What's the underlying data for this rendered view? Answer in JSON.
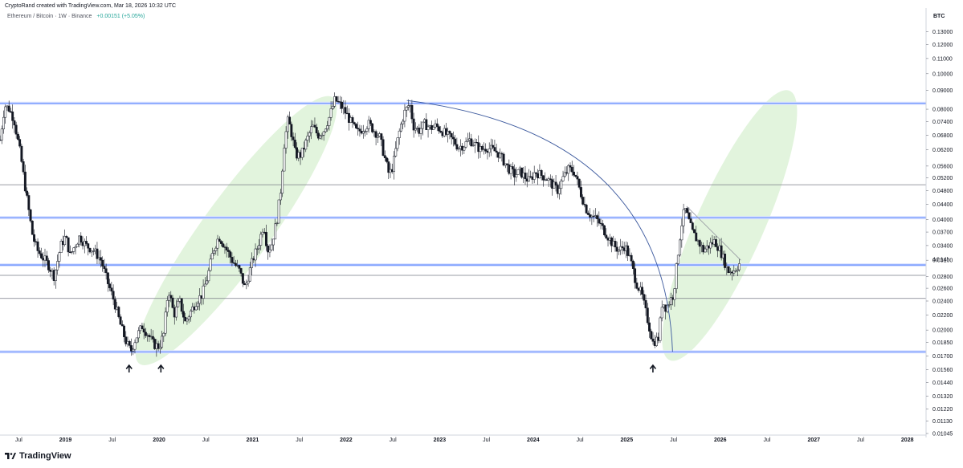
{
  "header": {
    "created_line": "CryptoRand created with TradingView.com, Mar 18, 2026 10:32 UTC",
    "symbol_line": "Ethereum / Bitcoin · 1W · Binance",
    "change": "+0.00151 (+5.05%)"
  },
  "footer": {
    "brand": "TradingView"
  },
  "chart_data": {
    "type": "candlestick",
    "title": "Ethereum / Bitcoin · 1W · Binance",
    "currency_label": "BTC",
    "y_scale": "log",
    "ylim": [
      0.01045,
      0.14
    ],
    "y_ticks": [
      "0.13000",
      "0.12000",
      "0.11000",
      "0.10000",
      "0.09000",
      "0.08000",
      "0.07400",
      "0.06800",
      "0.06200",
      "0.05600",
      "0.05200",
      "0.04800",
      "0.04400",
      "0.04000",
      "0.03700",
      "0.03400",
      "0.03100",
      "0.02800",
      "0.02600",
      "0.02400",
      "0.02200",
      "0.02000",
      "0.01850",
      "0.01700",
      "0.01560",
      "0.01440",
      "0.01320",
      "0.01220",
      "0.01130",
      "0.01045"
    ],
    "y_tick_values": [
      0.13,
      0.12,
      0.11,
      0.1,
      0.09,
      0.08,
      0.074,
      0.068,
      0.062,
      0.056,
      0.052,
      0.048,
      0.044,
      0.04,
      0.037,
      0.034,
      0.031,
      0.028,
      0.026,
      0.024,
      0.022,
      0.02,
      0.0185,
      0.017,
      0.0156,
      0.0144,
      0.0132,
      0.0122,
      0.0113,
      0.01045
    ],
    "x_range": [
      2018.3,
      2028.2
    ],
    "x_ticks": [
      {
        "label": "Jul",
        "t": 2018.5,
        "bold": false
      },
      {
        "label": "2019",
        "t": 2019.0,
        "bold": true
      },
      {
        "label": "Jul",
        "t": 2019.5,
        "bold": false
      },
      {
        "label": "2020",
        "t": 2020.0,
        "bold": true
      },
      {
        "label": "Jul",
        "t": 2020.5,
        "bold": false
      },
      {
        "label": "2021",
        "t": 2021.0,
        "bold": true
      },
      {
        "label": "Jul",
        "t": 2021.5,
        "bold": false
      },
      {
        "label": "2022",
        "t": 2022.0,
        "bold": true
      },
      {
        "label": "Jul",
        "t": 2022.5,
        "bold": false
      },
      {
        "label": "2023",
        "t": 2023.0,
        "bold": true
      },
      {
        "label": "Jul",
        "t": 2023.5,
        "bold": false
      },
      {
        "label": "2024",
        "t": 2024.0,
        "bold": true
      },
      {
        "label": "Jul",
        "t": 2024.5,
        "bold": false
      },
      {
        "label": "2025",
        "t": 2025.0,
        "bold": true
      },
      {
        "label": "Jul",
        "t": 2025.5,
        "bold": false
      },
      {
        "label": "2026",
        "t": 2026.0,
        "bold": true
      },
      {
        "label": "Jul",
        "t": 2026.5,
        "bold": false
      },
      {
        "label": "2027",
        "t": 2027.0,
        "bold": true
      },
      {
        "label": "Jul",
        "t": 2027.5,
        "bold": false
      },
      {
        "label": "2028",
        "t": 2028.0,
        "bold": true
      }
    ],
    "current_price_label": "4d 14h",
    "price_path": [
      {
        "t": 2018.3,
        "v": 0.066
      },
      {
        "t": 2018.35,
        "v": 0.082
      },
      {
        "t": 2018.4,
        "v": 0.08
      },
      {
        "t": 2018.45,
        "v": 0.075
      },
      {
        "t": 2018.52,
        "v": 0.06
      },
      {
        "t": 2018.58,
        "v": 0.047
      },
      {
        "t": 2018.65,
        "v": 0.036
      },
      {
        "t": 2018.7,
        "v": 0.033
      },
      {
        "t": 2018.78,
        "v": 0.031
      },
      {
        "t": 2018.82,
        "v": 0.03
      },
      {
        "t": 2018.88,
        "v": 0.028
      },
      {
        "t": 2018.95,
        "v": 0.034
      },
      {
        "t": 2019.0,
        "v": 0.036
      },
      {
        "t": 2019.05,
        "v": 0.032
      },
      {
        "t": 2019.1,
        "v": 0.034
      },
      {
        "t": 2019.15,
        "v": 0.036
      },
      {
        "t": 2019.22,
        "v": 0.034
      },
      {
        "t": 2019.3,
        "v": 0.033
      },
      {
        "t": 2019.38,
        "v": 0.031
      },
      {
        "t": 2019.45,
        "v": 0.027
      },
      {
        "t": 2019.52,
        "v": 0.024
      },
      {
        "t": 2019.58,
        "v": 0.021
      },
      {
        "t": 2019.65,
        "v": 0.0185
      },
      {
        "t": 2019.7,
        "v": 0.0175
      },
      {
        "t": 2019.75,
        "v": 0.019
      },
      {
        "t": 2019.82,
        "v": 0.0205
      },
      {
        "t": 2019.88,
        "v": 0.0195
      },
      {
        "t": 2019.94,
        "v": 0.0183
      },
      {
        "t": 2020.0,
        "v": 0.018
      },
      {
        "t": 2020.05,
        "v": 0.0195
      },
      {
        "t": 2020.1,
        "v": 0.026
      },
      {
        "t": 2020.16,
        "v": 0.022
      },
      {
        "t": 2020.22,
        "v": 0.024
      },
      {
        "t": 2020.28,
        "v": 0.021
      },
      {
        "t": 2020.34,
        "v": 0.0225
      },
      {
        "t": 2020.4,
        "v": 0.024
      },
      {
        "t": 2020.46,
        "v": 0.025
      },
      {
        "t": 2020.52,
        "v": 0.028
      },
      {
        "t": 2020.58,
        "v": 0.033
      },
      {
        "t": 2020.64,
        "v": 0.036
      },
      {
        "t": 2020.7,
        "v": 0.034
      },
      {
        "t": 2020.78,
        "v": 0.031
      },
      {
        "t": 2020.86,
        "v": 0.029
      },
      {
        "t": 2020.92,
        "v": 0.026
      },
      {
        "t": 2021.0,
        "v": 0.031
      },
      {
        "t": 2021.06,
        "v": 0.034
      },
      {
        "t": 2021.12,
        "v": 0.039
      },
      {
        "t": 2021.16,
        "v": 0.033
      },
      {
        "t": 2021.2,
        "v": 0.034
      },
      {
        "t": 2021.26,
        "v": 0.04
      },
      {
        "t": 2021.3,
        "v": 0.048
      },
      {
        "t": 2021.34,
        "v": 0.065
      },
      {
        "t": 2021.38,
        "v": 0.075
      },
      {
        "t": 2021.42,
        "v": 0.068
      },
      {
        "t": 2021.46,
        "v": 0.06
      },
      {
        "t": 2021.52,
        "v": 0.06
      },
      {
        "t": 2021.58,
        "v": 0.066
      },
      {
        "t": 2021.64,
        "v": 0.072
      },
      {
        "t": 2021.7,
        "v": 0.068
      },
      {
        "t": 2021.76,
        "v": 0.07
      },
      {
        "t": 2021.82,
        "v": 0.076
      },
      {
        "t": 2021.88,
        "v": 0.085
      },
      {
        "t": 2021.94,
        "v": 0.082
      },
      {
        "t": 2022.0,
        "v": 0.078
      },
      {
        "t": 2022.06,
        "v": 0.073
      },
      {
        "t": 2022.12,
        "v": 0.069
      },
      {
        "t": 2022.18,
        "v": 0.071
      },
      {
        "t": 2022.24,
        "v": 0.073
      },
      {
        "t": 2022.3,
        "v": 0.07
      },
      {
        "t": 2022.36,
        "v": 0.067
      },
      {
        "t": 2022.42,
        "v": 0.058
      },
      {
        "t": 2022.46,
        "v": 0.053
      },
      {
        "t": 2022.5,
        "v": 0.056
      },
      {
        "t": 2022.56,
        "v": 0.068
      },
      {
        "t": 2022.62,
        "v": 0.078
      },
      {
        "t": 2022.68,
        "v": 0.083
      },
      {
        "t": 2022.72,
        "v": 0.072
      },
      {
        "t": 2022.78,
        "v": 0.07
      },
      {
        "t": 2022.84,
        "v": 0.073
      },
      {
        "t": 2022.9,
        "v": 0.071
      },
      {
        "t": 2022.96,
        "v": 0.072
      },
      {
        "t": 2023.02,
        "v": 0.07
      },
      {
        "t": 2023.08,
        "v": 0.068
      },
      {
        "t": 2023.14,
        "v": 0.066
      },
      {
        "t": 2023.2,
        "v": 0.063
      },
      {
        "t": 2023.26,
        "v": 0.064
      },
      {
        "t": 2023.32,
        "v": 0.066
      },
      {
        "t": 2023.38,
        "v": 0.064
      },
      {
        "t": 2023.44,
        "v": 0.062
      },
      {
        "t": 2023.5,
        "v": 0.063
      },
      {
        "t": 2023.56,
        "v": 0.062
      },
      {
        "t": 2023.62,
        "v": 0.061
      },
      {
        "t": 2023.68,
        "v": 0.058
      },
      {
        "t": 2023.74,
        "v": 0.055
      },
      {
        "t": 2023.8,
        "v": 0.053
      },
      {
        "t": 2023.86,
        "v": 0.054
      },
      {
        "t": 2023.92,
        "v": 0.052
      },
      {
        "t": 2023.96,
        "v": 0.051
      },
      {
        "t": 2024.02,
        "v": 0.054
      },
      {
        "t": 2024.08,
        "v": 0.053
      },
      {
        "t": 2024.14,
        "v": 0.052
      },
      {
        "t": 2024.2,
        "v": 0.05
      },
      {
        "t": 2024.26,
        "v": 0.048
      },
      {
        "t": 2024.32,
        "v": 0.052
      },
      {
        "t": 2024.38,
        "v": 0.055
      },
      {
        "t": 2024.44,
        "v": 0.054
      },
      {
        "t": 2024.5,
        "v": 0.048
      },
      {
        "t": 2024.56,
        "v": 0.043
      },
      {
        "t": 2024.62,
        "v": 0.041
      },
      {
        "t": 2024.68,
        "v": 0.04
      },
      {
        "t": 2024.74,
        "v": 0.038
      },
      {
        "t": 2024.8,
        "v": 0.036
      },
      {
        "t": 2024.86,
        "v": 0.034
      },
      {
        "t": 2024.92,
        "v": 0.033
      },
      {
        "t": 2024.98,
        "v": 0.034
      },
      {
        "t": 2025.04,
        "v": 0.031
      },
      {
        "t": 2025.1,
        "v": 0.027
      },
      {
        "t": 2025.16,
        "v": 0.025
      },
      {
        "t": 2025.22,
        "v": 0.0215
      },
      {
        "t": 2025.28,
        "v": 0.0185
      },
      {
        "t": 2025.34,
        "v": 0.019
      },
      {
        "t": 2025.38,
        "v": 0.024
      },
      {
        "t": 2025.42,
        "v": 0.023
      },
      {
        "t": 2025.46,
        "v": 0.024
      },
      {
        "t": 2025.5,
        "v": 0.025
      },
      {
        "t": 2025.54,
        "v": 0.031
      },
      {
        "t": 2025.58,
        "v": 0.038
      },
      {
        "t": 2025.62,
        "v": 0.043
      },
      {
        "t": 2025.66,
        "v": 0.04
      },
      {
        "t": 2025.7,
        "v": 0.037
      },
      {
        "t": 2025.76,
        "v": 0.035
      },
      {
        "t": 2025.82,
        "v": 0.033
      },
      {
        "t": 2025.88,
        "v": 0.034
      },
      {
        "t": 2025.94,
        "v": 0.035
      },
      {
        "t": 2026.0,
        "v": 0.033
      },
      {
        "t": 2026.04,
        "v": 0.031
      },
      {
        "t": 2026.08,
        "v": 0.029
      },
      {
        "t": 2026.14,
        "v": 0.029
      },
      {
        "t": 2026.19,
        "v": 0.03
      },
      {
        "t": 2026.21,
        "v": 0.0305
      }
    ],
    "horizontal_levels": [
      {
        "v": 0.083,
        "style": "blue"
      },
      {
        "v": 0.0498,
        "style": "gray"
      },
      {
        "v": 0.0405,
        "style": "blue"
      },
      {
        "v": 0.0301,
        "style": "blue"
      },
      {
        "v": 0.0282,
        "style": "gray"
      },
      {
        "v": 0.0244,
        "style": "gray"
      },
      {
        "v": 0.01745,
        "style": "blue"
      }
    ],
    "green_zones": [
      {
        "t1": 2019.85,
        "v1": 0.017,
        "t2": 2021.8,
        "v2": 0.082
      },
      {
        "t1": 2025.5,
        "v1": 0.0175,
        "t2": 2026.7,
        "v2": 0.085
      }
    ],
    "arc": {
      "t_start": 2022.65,
      "v_start": 0.0845,
      "t_end": 2025.49,
      "v_end": 0.01745
    },
    "trendline": {
      "t1": 2025.64,
      "v1": 0.0435,
      "t2": 2026.22,
      "v2": 0.031
    },
    "arrows": [
      {
        "t": 2019.68
      },
      {
        "t": 2020.02
      },
      {
        "t": 2025.28
      }
    ],
    "colors": {
      "candle_body": "#131722",
      "blue_level": "#2962ff",
      "gray_level": "#787b86",
      "zone": "#bfe6b3",
      "arc": "#3d5a9e"
    }
  }
}
